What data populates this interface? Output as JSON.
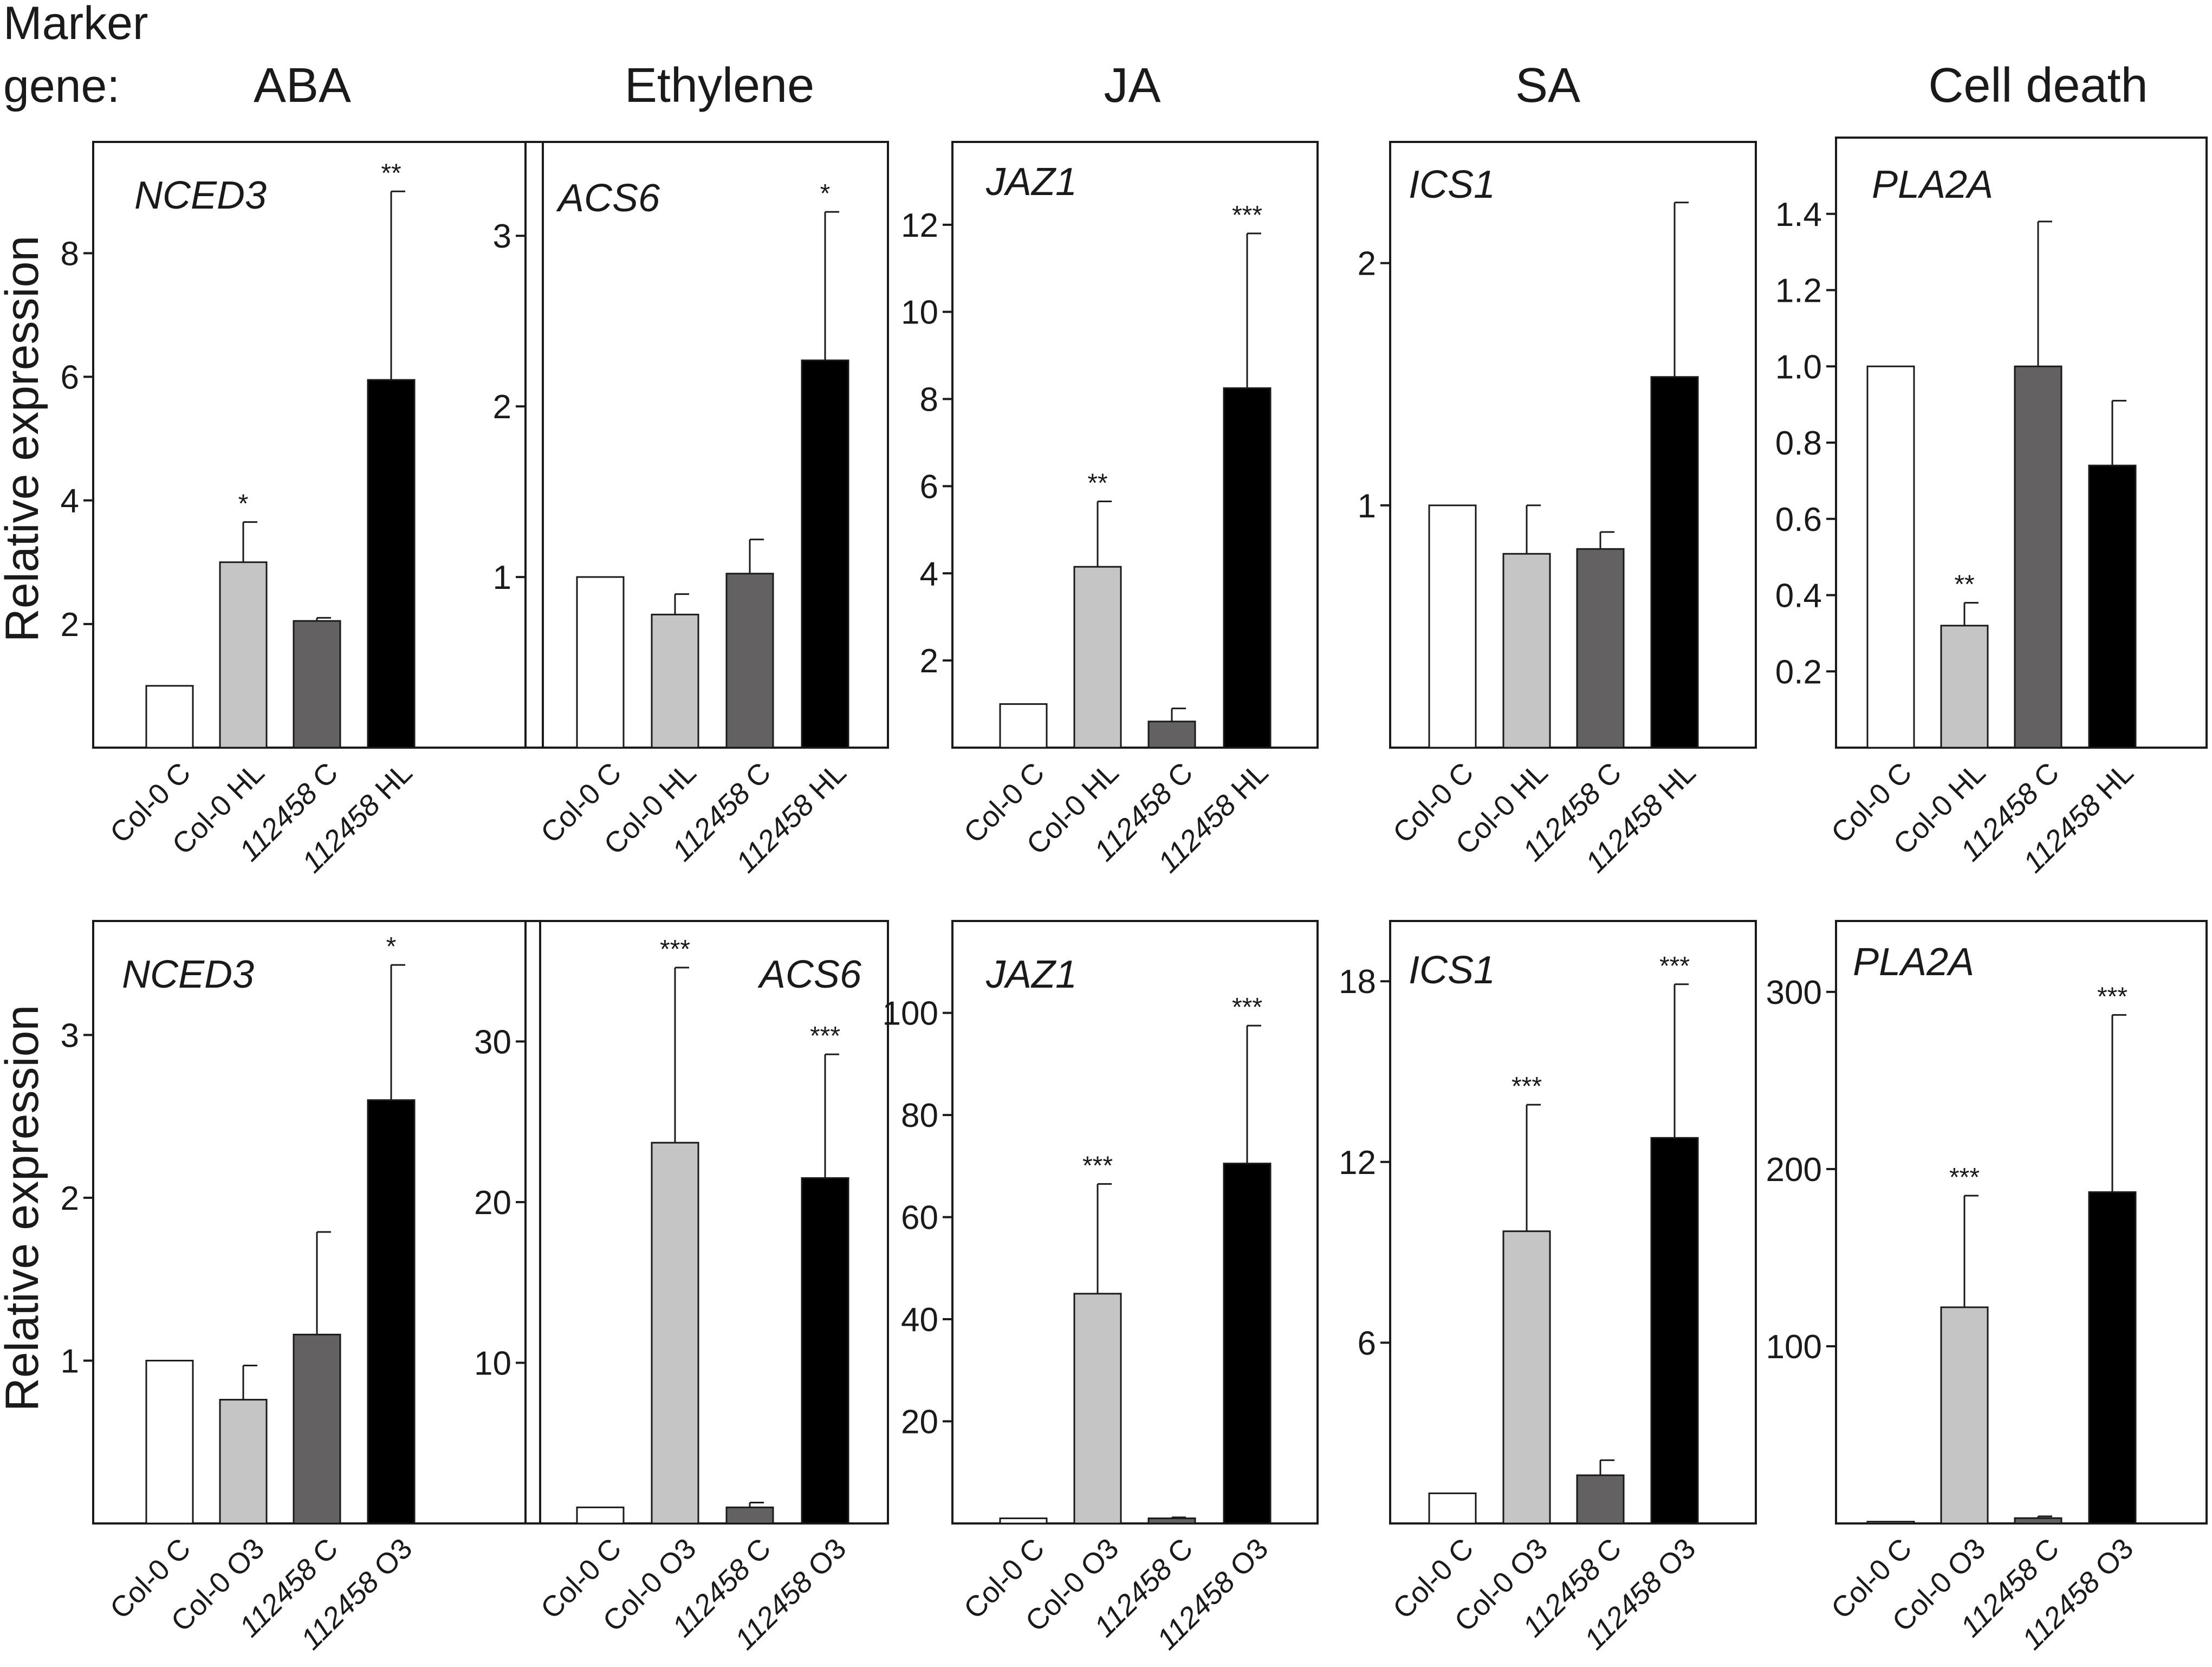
{
  "header": {
    "marker_label_line1": "Marker",
    "marker_label_line2": "gene:",
    "categories": [
      "ABA",
      "Ethylene",
      "JA",
      "SA",
      "Cell death"
    ]
  },
  "ylabel": "Relative expression",
  "chart_data": [
    {
      "type": "bar",
      "title": "NCED3",
      "category": "ABA",
      "row": "top",
      "categories": [
        "Col-0 C",
        "Col-0 HL",
        "112458 C",
        "112458 HL"
      ],
      "values": [
        1.0,
        3.0,
        2.05,
        5.95
      ],
      "errors": [
        0,
        0.65,
        0.05,
        3.05
      ],
      "significance": [
        "",
        "*",
        "",
        "**"
      ],
      "ylim": [
        0,
        9.8
      ],
      "yticks": [
        2,
        4,
        6,
        8
      ],
      "ytick_labels": [
        "2",
        "4",
        "6",
        "8"
      ],
      "xlabel": "",
      "ylabel": "Relative expression"
    },
    {
      "type": "bar",
      "title": "ACS6",
      "category": "Ethylene",
      "row": "top",
      "categories": [
        "Col-0 C",
        "Col-0 HL",
        "112458 C",
        "112458 HL"
      ],
      "values": [
        1.0,
        0.78,
        1.02,
        2.27
      ],
      "errors": [
        0,
        0.12,
        0.2,
        0.87
      ],
      "significance": [
        "",
        "",
        "",
        "*"
      ],
      "ylim": [
        0,
        3.55
      ],
      "yticks": [
        1,
        2,
        3
      ],
      "ytick_labels": [
        "1",
        "2",
        "3"
      ],
      "xlabel": "",
      "ylabel": ""
    },
    {
      "type": "bar",
      "title": "JAZ1",
      "category": "JA",
      "row": "top",
      "categories": [
        "Col-0 C",
        "Col-0 HL",
        "112458 C",
        "112458 HL"
      ],
      "values": [
        1.0,
        4.15,
        0.6,
        8.25
      ],
      "errors": [
        0,
        1.5,
        0.3,
        3.55
      ],
      "significance": [
        "",
        "**",
        "",
        "***"
      ],
      "ylim": [
        0,
        13.9
      ],
      "yticks": [
        2,
        4,
        6,
        8,
        10,
        12
      ],
      "ytick_labels": [
        "2",
        "4",
        "6",
        "8",
        "10",
        "12"
      ],
      "xlabel": "",
      "ylabel": ""
    },
    {
      "type": "bar",
      "title": "ICS1",
      "category": "SA",
      "row": "top",
      "categories": [
        "Col-0 C",
        "Col-0 HL",
        "112458 C",
        "112458 HL"
      ],
      "values": [
        1.0,
        0.8,
        0.82,
        1.53
      ],
      "errors": [
        0,
        0.2,
        0.07,
        0.72
      ],
      "significance": [
        "",
        "",
        "",
        ""
      ],
      "ylim": [
        0,
        2.5
      ],
      "yticks": [
        1,
        2
      ],
      "ytick_labels": [
        "1",
        "2"
      ],
      "xlabel": "",
      "ylabel": ""
    },
    {
      "type": "bar",
      "title": "PLA2A",
      "category": "Cell death",
      "row": "top",
      "categories": [
        "Col-0 C",
        "Col-0 HL",
        "112458 C",
        "112458 HL"
      ],
      "values": [
        1.0,
        0.32,
        1.0,
        0.74
      ],
      "errors": [
        0,
        0.06,
        0.38,
        0.17
      ],
      "significance": [
        "",
        "**",
        "",
        ""
      ],
      "ylim": [
        0,
        1.6
      ],
      "yticks": [
        0.2,
        0.4,
        0.6,
        0.8,
        1.0,
        1.2,
        1.4
      ],
      "ytick_labels": [
        "0.2",
        "0.4",
        "0.6",
        "0.8",
        "1.0",
        "1.2",
        "1.4"
      ],
      "xlabel": "",
      "ylabel": ""
    },
    {
      "type": "bar",
      "title": "NCED3",
      "category": "ABA",
      "row": "bottom",
      "categories": [
        "Col-0 C",
        "Col-0 O3",
        "112458 C",
        "112458 O3"
      ],
      "values": [
        1.0,
        0.76,
        1.16,
        2.6
      ],
      "errors": [
        0,
        0.21,
        0.63,
        0.83
      ],
      "significance": [
        "",
        "",
        "",
        "*"
      ],
      "ylim": [
        0,
        3.7
      ],
      "yticks": [
        1,
        2,
        3
      ],
      "ytick_labels": [
        "1",
        "2",
        "3"
      ],
      "xlabel": "",
      "ylabel": "Relative expression"
    },
    {
      "type": "bar",
      "title": "ACS6",
      "category": "Ethylene",
      "row": "bottom",
      "categories": [
        "Col-0 C",
        "Col-0 O3",
        "112458 C",
        "112458 O3"
      ],
      "values": [
        1.0,
        23.7,
        1.0,
        21.5
      ],
      "errors": [
        0,
        10.9,
        0.3,
        7.7
      ],
      "significance": [
        "",
        "***",
        "",
        "***"
      ],
      "ylim": [
        0,
        37.5
      ],
      "yticks": [
        10,
        20,
        30
      ],
      "ytick_labels": [
        "10",
        "20",
        "30"
      ],
      "xlabel": "",
      "ylabel": ""
    },
    {
      "type": "bar",
      "title": "JAZ1",
      "category": "JA",
      "row": "bottom",
      "categories": [
        "Col-0 C",
        "Col-0 O3",
        "112458 C",
        "112458 O3"
      ],
      "values": [
        1.0,
        45.0,
        1.0,
        70.5
      ],
      "errors": [
        0,
        21.5,
        0.2,
        27.0
      ],
      "significance": [
        "",
        "***",
        "",
        "***"
      ],
      "ylim": [
        0,
        118
      ],
      "yticks": [
        20,
        40,
        60,
        80,
        100
      ],
      "ytick_labels": [
        "20",
        "40",
        "60",
        "80",
        "100"
      ],
      "xlabel": "",
      "ylabel": ""
    },
    {
      "type": "bar",
      "title": "ICS1",
      "category": "SA",
      "row": "bottom",
      "categories": [
        "Col-0 C",
        "Col-0 O3",
        "112458 C",
        "112458 O3"
      ],
      "values": [
        1.0,
        9.7,
        1.6,
        12.8
      ],
      "errors": [
        0,
        4.2,
        0.5,
        5.1
      ],
      "significance": [
        "",
        "***",
        "",
        "***"
      ],
      "ylim": [
        0,
        20
      ],
      "yticks": [
        6,
        12,
        18
      ],
      "ytick_labels": [
        "6",
        "12",
        "18"
      ],
      "xlabel": "",
      "ylabel": ""
    },
    {
      "type": "bar",
      "title": "PLA2A",
      "category": "Cell death",
      "row": "bottom",
      "categories": [
        "Col-0 C",
        "Col-0 O3",
        "112458 C",
        "112458 O3"
      ],
      "values": [
        1.0,
        122,
        3,
        187
      ],
      "errors": [
        0,
        63,
        1,
        100
      ],
      "significance": [
        "",
        "***",
        "",
        "***"
      ],
      "ylim": [
        0,
        340
      ],
      "yticks": [
        100,
        200,
        300
      ],
      "ytick_labels": [
        "100",
        "200",
        "300"
      ],
      "xlabel": "",
      "ylabel": ""
    }
  ],
  "colors": {
    "bar_fills": [
      "#ffffff",
      "#c5c5c6",
      "#636161",
      "#000000"
    ],
    "axis": "#1a1a1a",
    "text": "#1a1a1a"
  }
}
